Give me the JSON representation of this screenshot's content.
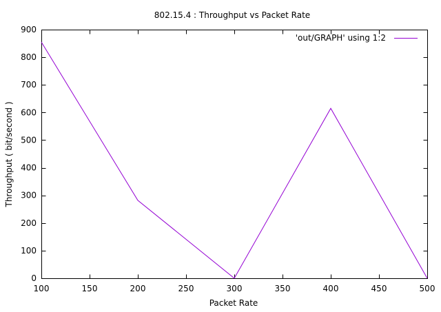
{
  "chart_data": {
    "type": "line",
    "title": "802.15.4 : Throughput vs Packet Rate",
    "xlabel": "Packet Rate",
    "ylabel": "Throughput ( bit/second )",
    "xlim": [
      100,
      500
    ],
    "ylim": [
      0,
      900
    ],
    "x_ticks": [
      "100",
      "150",
      "200",
      "250",
      "300",
      "350",
      "400",
      "450",
      "500"
    ],
    "y_ticks": [
      "0",
      "100",
      "200",
      "300",
      "400",
      "500",
      "600",
      "700",
      "800",
      "900"
    ],
    "grid": false,
    "legend_position": "top-right",
    "series": [
      {
        "name": "'out/GRAPH' using 1:2",
        "color": "#9400d3",
        "x": [
          100,
          200,
          300,
          400,
          500
        ],
        "y": [
          855,
          282,
          0,
          615,
          0
        ]
      }
    ]
  }
}
